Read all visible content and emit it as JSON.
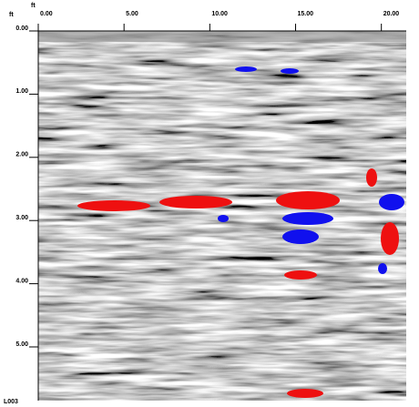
{
  "chart_data": {
    "type": "radargram",
    "xlabel": "ft",
    "ylabel": "ft",
    "annotation": "L003",
    "xlim": [
      0,
      21.45
    ],
    "ylim": [
      0,
      5.85
    ],
    "xticks": [
      {
        "value": 0,
        "label": "0.00"
      },
      {
        "value": 5,
        "label": "5.00"
      },
      {
        "value": 10,
        "label": "10.00"
      },
      {
        "value": 15,
        "label": "15.00"
      },
      {
        "value": 20,
        "label": "20.00"
      }
    ],
    "yticks": [
      {
        "value": 0,
        "label": "0.00"
      },
      {
        "value": 1,
        "label": "1.00"
      },
      {
        "value": 2,
        "label": "2.00"
      },
      {
        "value": 3,
        "label": "3.00"
      },
      {
        "value": 4,
        "label": "4.00"
      },
      {
        "value": 5,
        "label": "5.00"
      }
    ]
  }
}
